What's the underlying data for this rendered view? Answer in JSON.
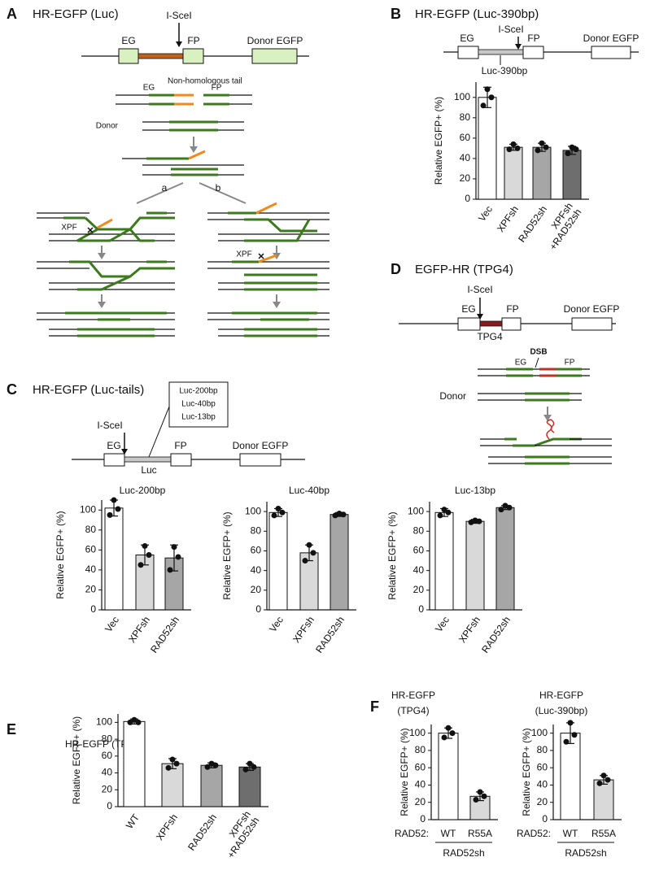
{
  "panels": {
    "A": {
      "letter": "A",
      "title": "HR-EGFP (Luc)",
      "labels": [
        "I-SceI",
        "EG",
        "FP",
        "Donor EGFP",
        "Non-homologous tail",
        "EG",
        "FP",
        "Donor",
        "a",
        "b",
        "XPF",
        "XPF"
      ]
    },
    "B": {
      "letter": "B",
      "title": "HR-EGFP (Luc-390bp)",
      "labels": [
        "I-SceI",
        "EG",
        "FP",
        "Donor EGFP",
        "Luc-390bp"
      ]
    },
    "C": {
      "letter": "C",
      "title": "HR-EGFP (Luc-tails)",
      "labels": [
        "Luc-200bp",
        "Luc-40bp",
        "Luc-13bp",
        "I-SceI",
        "EG",
        "FP",
        "Donor EGFP",
        "Luc"
      ]
    },
    "D": {
      "letter": "D",
      "title": "EGFP-HR (TPG4)",
      "labels": [
        "I-SceI",
        "EG",
        "FP",
        "Donor EGFP",
        "TPG4",
        "DSB",
        "EG",
        "FP",
        "Donor"
      ]
    },
    "E": {
      "letter": "E"
    },
    "F": {
      "letter": "F"
    }
  },
  "chart_data": [
    {
      "type": "bar",
      "ylabel": "Relative EGFP+ (%)",
      "categories": [
        "Vec",
        "XPFsh",
        "RAD52sh",
        [
          "XPFsh",
          "+RAD52sh"
        ]
      ],
      "values": [
        100,
        51,
        51,
        48
      ],
      "errors": [
        10,
        3,
        4,
        4
      ],
      "points": [
        [
          92,
          108,
          100
        ],
        [
          49,
          54,
          50
        ],
        [
          48,
          55,
          51
        ],
        [
          45,
          51,
          49
        ]
      ],
      "colors": [
        "#ffffff",
        "#d9d9d9",
        "#a6a6a6",
        "#6e6e6e"
      ],
      "ylim": [
        0,
        115
      ],
      "yticks": [
        0,
        20,
        40,
        60,
        80,
        100
      ]
    },
    {
      "type": "bar",
      "title": "Luc-200bp",
      "ylabel": "Relative EGFP+ (%)",
      "categories": [
        "Vec",
        "XPFsh",
        "RAD52sh"
      ],
      "values": [
        102,
        55,
        52
      ],
      "errors": [
        8,
        10,
        13
      ],
      "points": [
        [
          95,
          110,
          101
        ],
        [
          45,
          64,
          55
        ],
        [
          40,
          63,
          53
        ]
      ],
      "colors": [
        "#ffffff",
        "#d9d9d9",
        "#a6a6a6"
      ],
      "ylim": [
        0,
        110
      ],
      "yticks": [
        0,
        20,
        40,
        60,
        80,
        100
      ]
    },
    {
      "type": "bar",
      "title": "Luc-40bp",
      "ylabel": "Relative EGFP+ (%)",
      "categories": [
        "Vec",
        "XPFsh",
        "RAD52sh"
      ],
      "values": [
        99,
        58,
        97
      ],
      "errors": [
        4,
        8,
        2
      ],
      "points": [
        [
          96,
          103,
          99
        ],
        [
          50,
          66,
          58
        ],
        [
          96,
          98,
          97
        ]
      ],
      "colors": [
        "#ffffff",
        "#d9d9d9",
        "#a6a6a6"
      ],
      "ylim": [
        0,
        110
      ],
      "yticks": [
        0,
        20,
        40,
        60,
        80,
        100
      ]
    },
    {
      "type": "bar",
      "title": "Luc-13bp",
      "ylabel": "Relative EGFP+ (%)",
      "categories": [
        "Vec",
        "XPFsh",
        "RAD52sh"
      ],
      "values": [
        99,
        90,
        104
      ],
      "errors": [
        4,
        2,
        2
      ],
      "points": [
        [
          96,
          102,
          99
        ],
        [
          89,
          91,
          90
        ],
        [
          102,
          106,
          104
        ]
      ],
      "colors": [
        "#ffffff",
        "#d9d9d9",
        "#a6a6a6"
      ],
      "ylim": [
        0,
        110
      ],
      "yticks": [
        0,
        20,
        40,
        60,
        80,
        100
      ]
    },
    {
      "type": "bar",
      "title": "HR-EGFP (TPG4)",
      "ylabel": "Relative EGFP+ (%)",
      "categories": [
        "WT",
        "XPFsh",
        "RAD52sh",
        [
          "XPFsh",
          "+RAD52sh"
        ]
      ],
      "values": [
        101,
        51,
        49,
        47
      ],
      "errors": [
        3,
        6,
        3,
        4
      ],
      "points": [
        [
          100,
          103,
          100
        ],
        [
          46,
          56,
          51
        ],
        [
          47,
          51,
          49
        ],
        [
          44,
          51,
          47
        ]
      ],
      "colors": [
        "#ffffff",
        "#d9d9d9",
        "#a6a6a6",
        "#6e6e6e"
      ],
      "ylim": [
        0,
        110
      ],
      "yticks": [
        0,
        20,
        40,
        60,
        80,
        100
      ]
    },
    {
      "type": "bar",
      "title_lines": [
        "HR-EGFP",
        "(TPG4)"
      ],
      "ylabel": "Relative EGFP+ (%)",
      "categories": [
        "WT",
        "R55A"
      ],
      "x_prefix": "RAD52:",
      "x_group": "RAD52sh",
      "values": [
        100,
        27
      ],
      "errors": [
        6,
        5
      ],
      "points": [
        [
          95,
          106,
          100
        ],
        [
          23,
          32,
          27
        ]
      ],
      "colors": [
        "#ffffff",
        "#d9d9d9"
      ],
      "ylim": [
        0,
        110
      ],
      "yticks": [
        0,
        20,
        40,
        60,
        80,
        100
      ]
    },
    {
      "type": "bar",
      "title_lines": [
        "HR-EGFP",
        "(Luc-390bp)"
      ],
      "ylabel": "Relative EGFP+ (%)",
      "categories": [
        "WT",
        "R55A"
      ],
      "x_prefix": "RAD52:",
      "x_group": "RAD52sh",
      "values": [
        100,
        46
      ],
      "errors": [
        12,
        5
      ],
      "points": [
        [
          90,
          112,
          98
        ],
        [
          42,
          51,
          46
        ]
      ],
      "colors": [
        "#ffffff",
        "#d9d9d9"
      ],
      "ylim": [
        0,
        110
      ],
      "yticks": [
        0,
        20,
        40,
        60,
        80,
        100
      ]
    }
  ]
}
